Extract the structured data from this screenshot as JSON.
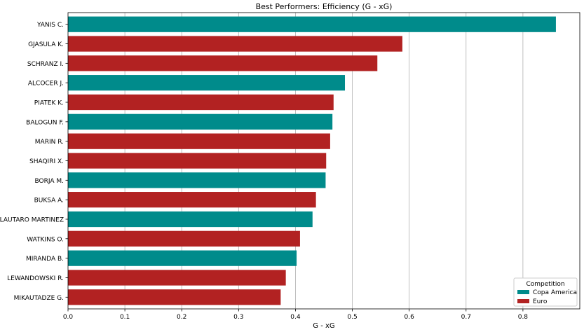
{
  "chart_data": {
    "type": "bar",
    "orientation": "horizontal",
    "title": "Best Performers: Efficiency (G - xG)",
    "xlabel": "G - xG",
    "ylabel": "",
    "xlim": [
      0,
      0.9
    ],
    "xticks": [
      "0.0",
      "0.1",
      "0.2",
      "0.3",
      "0.4",
      "0.5",
      "0.6",
      "0.7",
      "0.8"
    ],
    "grid": "vertical",
    "categories": [
      "YANIS C.",
      "GJASULA K.",
      "SCHRANZ I.",
      "ALCOCER J.",
      "PIATEK K.",
      "BALOGUN F.",
      "MARIN R.",
      "SHAQIRI X.",
      "BORJA M.",
      "BUKSA A.",
      "LAUTARO MARTINEZ",
      "WATKINS O.",
      "MIRANDA B.",
      "LEWANDOWSKI R.",
      "MIKAUTADZE G."
    ],
    "values": [
      0.858,
      0.588,
      0.544,
      0.487,
      0.467,
      0.465,
      0.461,
      0.454,
      0.453,
      0.436,
      0.43,
      0.408,
      0.402,
      0.383,
      0.374
    ],
    "groups": [
      "Copa America",
      "Euro",
      "Euro",
      "Copa America",
      "Euro",
      "Copa America",
      "Euro",
      "Euro",
      "Copa America",
      "Euro",
      "Copa America",
      "Euro",
      "Copa America",
      "Euro",
      "Euro"
    ],
    "legend": {
      "title": "Competition",
      "placement": "bottom-right",
      "entries": [
        {
          "name": "Copa America",
          "color": "#008b8b"
        },
        {
          "name": "Euro",
          "color": "#b22222"
        }
      ]
    }
  }
}
